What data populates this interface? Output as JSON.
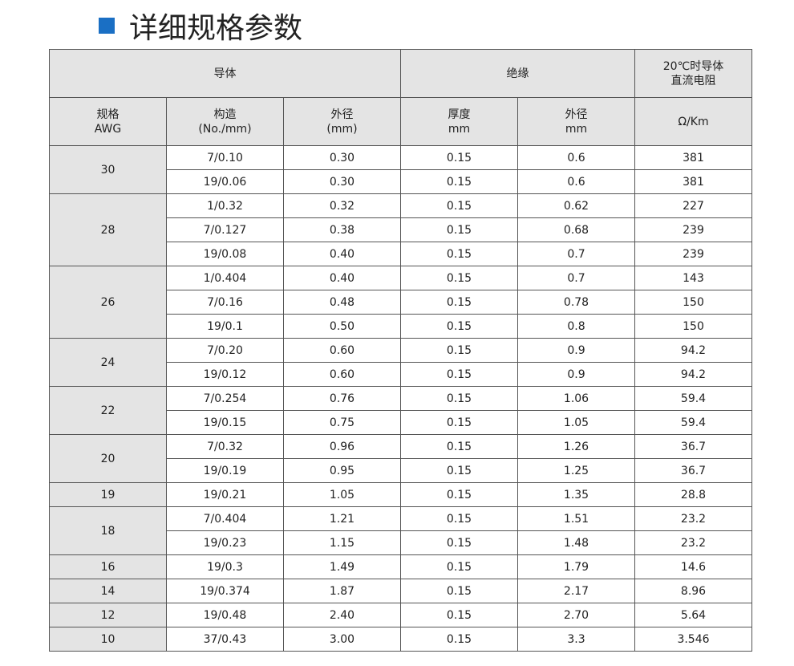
{
  "title": "详细规格参数",
  "table": {
    "header_top": [
      {
        "lines": [
          "导体"
        ],
        "span": 3
      },
      {
        "lines": [
          "绝缘"
        ],
        "span": 2
      },
      {
        "lines": [
          "20℃时导体",
          "直流电阻"
        ],
        "span": 1
      }
    ],
    "header_sub": [
      [
        "规格",
        "AWG"
      ],
      [
        "构造",
        "(No./mm)"
      ],
      [
        "外径",
        "(mm)"
      ],
      [
        "厚度",
        "mm"
      ],
      [
        "外径",
        "mm"
      ],
      [
        "Ω/Km"
      ]
    ],
    "groups": [
      {
        "awg": "30",
        "rows": [
          [
            "7/0.10",
            "0.30",
            "0.15",
            "0.6",
            "381"
          ],
          [
            "19/0.06",
            "0.30",
            "0.15",
            "0.6",
            "381"
          ]
        ]
      },
      {
        "awg": "28",
        "rows": [
          [
            "1/0.32",
            "0.32",
            "0.15",
            "0.62",
            "227"
          ],
          [
            "7/0.127",
            "0.38",
            "0.15",
            "0.68",
            "239"
          ],
          [
            "19/0.08",
            "0.40",
            "0.15",
            "0.7",
            "239"
          ]
        ]
      },
      {
        "awg": "26",
        "rows": [
          [
            "1/0.404",
            "0.40",
            "0.15",
            "0.7",
            "143"
          ],
          [
            "7/0.16",
            "0.48",
            "0.15",
            "0.78",
            "150"
          ],
          [
            "19/0.1",
            "0.50",
            "0.15",
            "0.8",
            "150"
          ]
        ]
      },
      {
        "awg": "24",
        "rows": [
          [
            "7/0.20",
            "0.60",
            "0.15",
            "0.9",
            "94.2"
          ],
          [
            "19/0.12",
            "0.60",
            "0.15",
            "0.9",
            "94.2"
          ]
        ]
      },
      {
        "awg": "22",
        "rows": [
          [
            "7/0.254",
            "0.76",
            "0.15",
            "1.06",
            "59.4"
          ],
          [
            "19/0.15",
            "0.75",
            "0.15",
            "1.05",
            "59.4"
          ]
        ]
      },
      {
        "awg": "20",
        "rows": [
          [
            "7/0.32",
            "0.96",
            "0.15",
            "1.26",
            "36.7"
          ],
          [
            "19/0.19",
            "0.95",
            "0.15",
            "1.25",
            "36.7"
          ]
        ]
      },
      {
        "awg": "19",
        "rows": [
          [
            "19/0.21",
            "1.05",
            "0.15",
            "1.35",
            "28.8"
          ]
        ]
      },
      {
        "awg": "18",
        "rows": [
          [
            "7/0.404",
            "1.21",
            "0.15",
            "1.51",
            "23.2"
          ],
          [
            "19/0.23",
            "1.15",
            "0.15",
            "1.48",
            "23.2"
          ]
        ]
      },
      {
        "awg": "16",
        "rows": [
          [
            "19/0.3",
            "1.49",
            "0.15",
            "1.79",
            "14.6"
          ]
        ]
      },
      {
        "awg": "14",
        "rows": [
          [
            "19/0.374",
            "1.87",
            "0.15",
            "2.17",
            "8.96"
          ]
        ]
      },
      {
        "awg": "12",
        "rows": [
          [
            "19/0.48",
            "2.40",
            "0.15",
            "2.70",
            "5.64"
          ]
        ]
      },
      {
        "awg": "10",
        "rows": [
          [
            "37/0.43",
            "3.00",
            "0.15",
            "3.3",
            "3.546"
          ]
        ]
      }
    ]
  }
}
